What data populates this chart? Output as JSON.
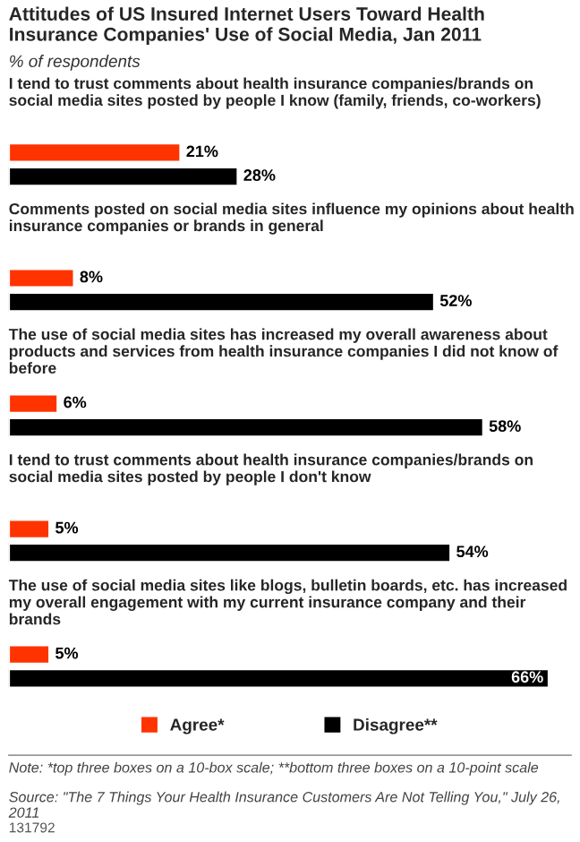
{
  "chart_data": {
    "type": "bar",
    "orientation": "horizontal",
    "title": "Attitudes of US Insured Internet Users Toward Health Insurance Companies' Use of Social Media, Jan 2011",
    "subtitle": "% of respondents",
    "categories": [
      "I tend to trust comments about health insurance companies/brands on social media sites posted by people I know (family, friends, co-workers)",
      "Comments posted on social media sites influence my opinions about health insurance companies or brands in general",
      "The use of social media sites has increased my overall awareness about products and services from health insurance companies I did not know of before",
      "I tend to trust comments about health insurance companies/brands on social media sites posted by people I don't know",
      "The use of social media sites like blogs, bulletin boards, etc. has increased my overall engagement with my current insurance company and their brands"
    ],
    "series": [
      {
        "name": "Agree*",
        "color": "#ff3300",
        "values": [
          21,
          8,
          6,
          5,
          5
        ],
        "value_labels": [
          "21%",
          "8%",
          "6%",
          "5%",
          "5%"
        ]
      },
      {
        "name": "Disagree**",
        "color": "#000000",
        "values": [
          28,
          52,
          58,
          54,
          66
        ],
        "value_labels": [
          "28%",
          "52%",
          "58%",
          "54%",
          "66%"
        ]
      }
    ],
    "legend": "bottom",
    "annotations": [
      "Note: *top three boxes on a 10-box scale; **bottom three boxes on a 10-point scale",
      "Source: \"The 7 Things Your Health Insurance Customers Are Not Telling You,\" July 26, 2011",
      "131792"
    ]
  }
}
